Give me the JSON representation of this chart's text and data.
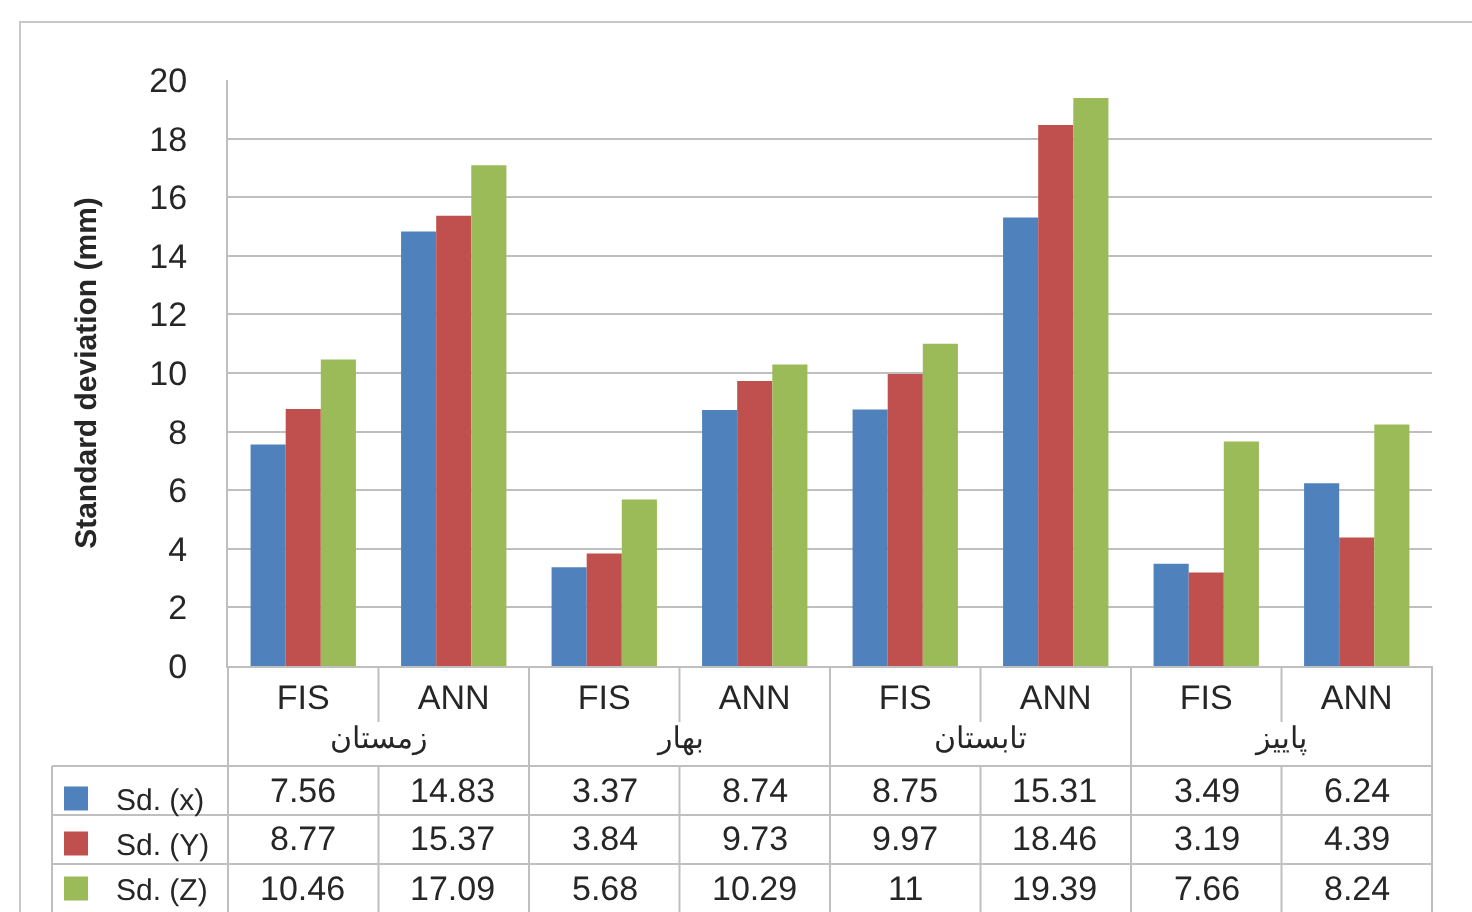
{
  "chart_data": {
    "type": "bar",
    "ylabel": "Standard deviation (mm)",
    "categories": [
      "FIS",
      "ANN",
      "FIS",
      "ANN",
      "FIS",
      "ANN",
      "FIS",
      "ANN"
    ],
    "annotations": [
      "زمستان",
      "بهار",
      "تابستان",
      "پاییز"
    ],
    "series": [
      {
        "name": "Sd. (x)",
        "color": "#4f81bd",
        "values": [
          7.56,
          14.83,
          3.37,
          8.74,
          8.75,
          15.31,
          3.49,
          6.24
        ]
      },
      {
        "name": "Sd. (Y)",
        "color": "#c0504d",
        "values": [
          8.77,
          15.37,
          3.84,
          9.73,
          9.97,
          18.46,
          3.19,
          4.39
        ]
      },
      {
        "name": "Sd. (Z)",
        "color": "#9bbb59",
        "values": [
          10.46,
          17.09,
          5.68,
          10.29,
          11,
          19.39,
          7.66,
          8.24
        ]
      }
    ],
    "ylim": [
      0,
      20
    ],
    "yticks": [
      0,
      2,
      4,
      6,
      8,
      10,
      12,
      14,
      16,
      18,
      20
    ],
    "grid": "y",
    "data_labels": true,
    "legend": "bottom left"
  }
}
